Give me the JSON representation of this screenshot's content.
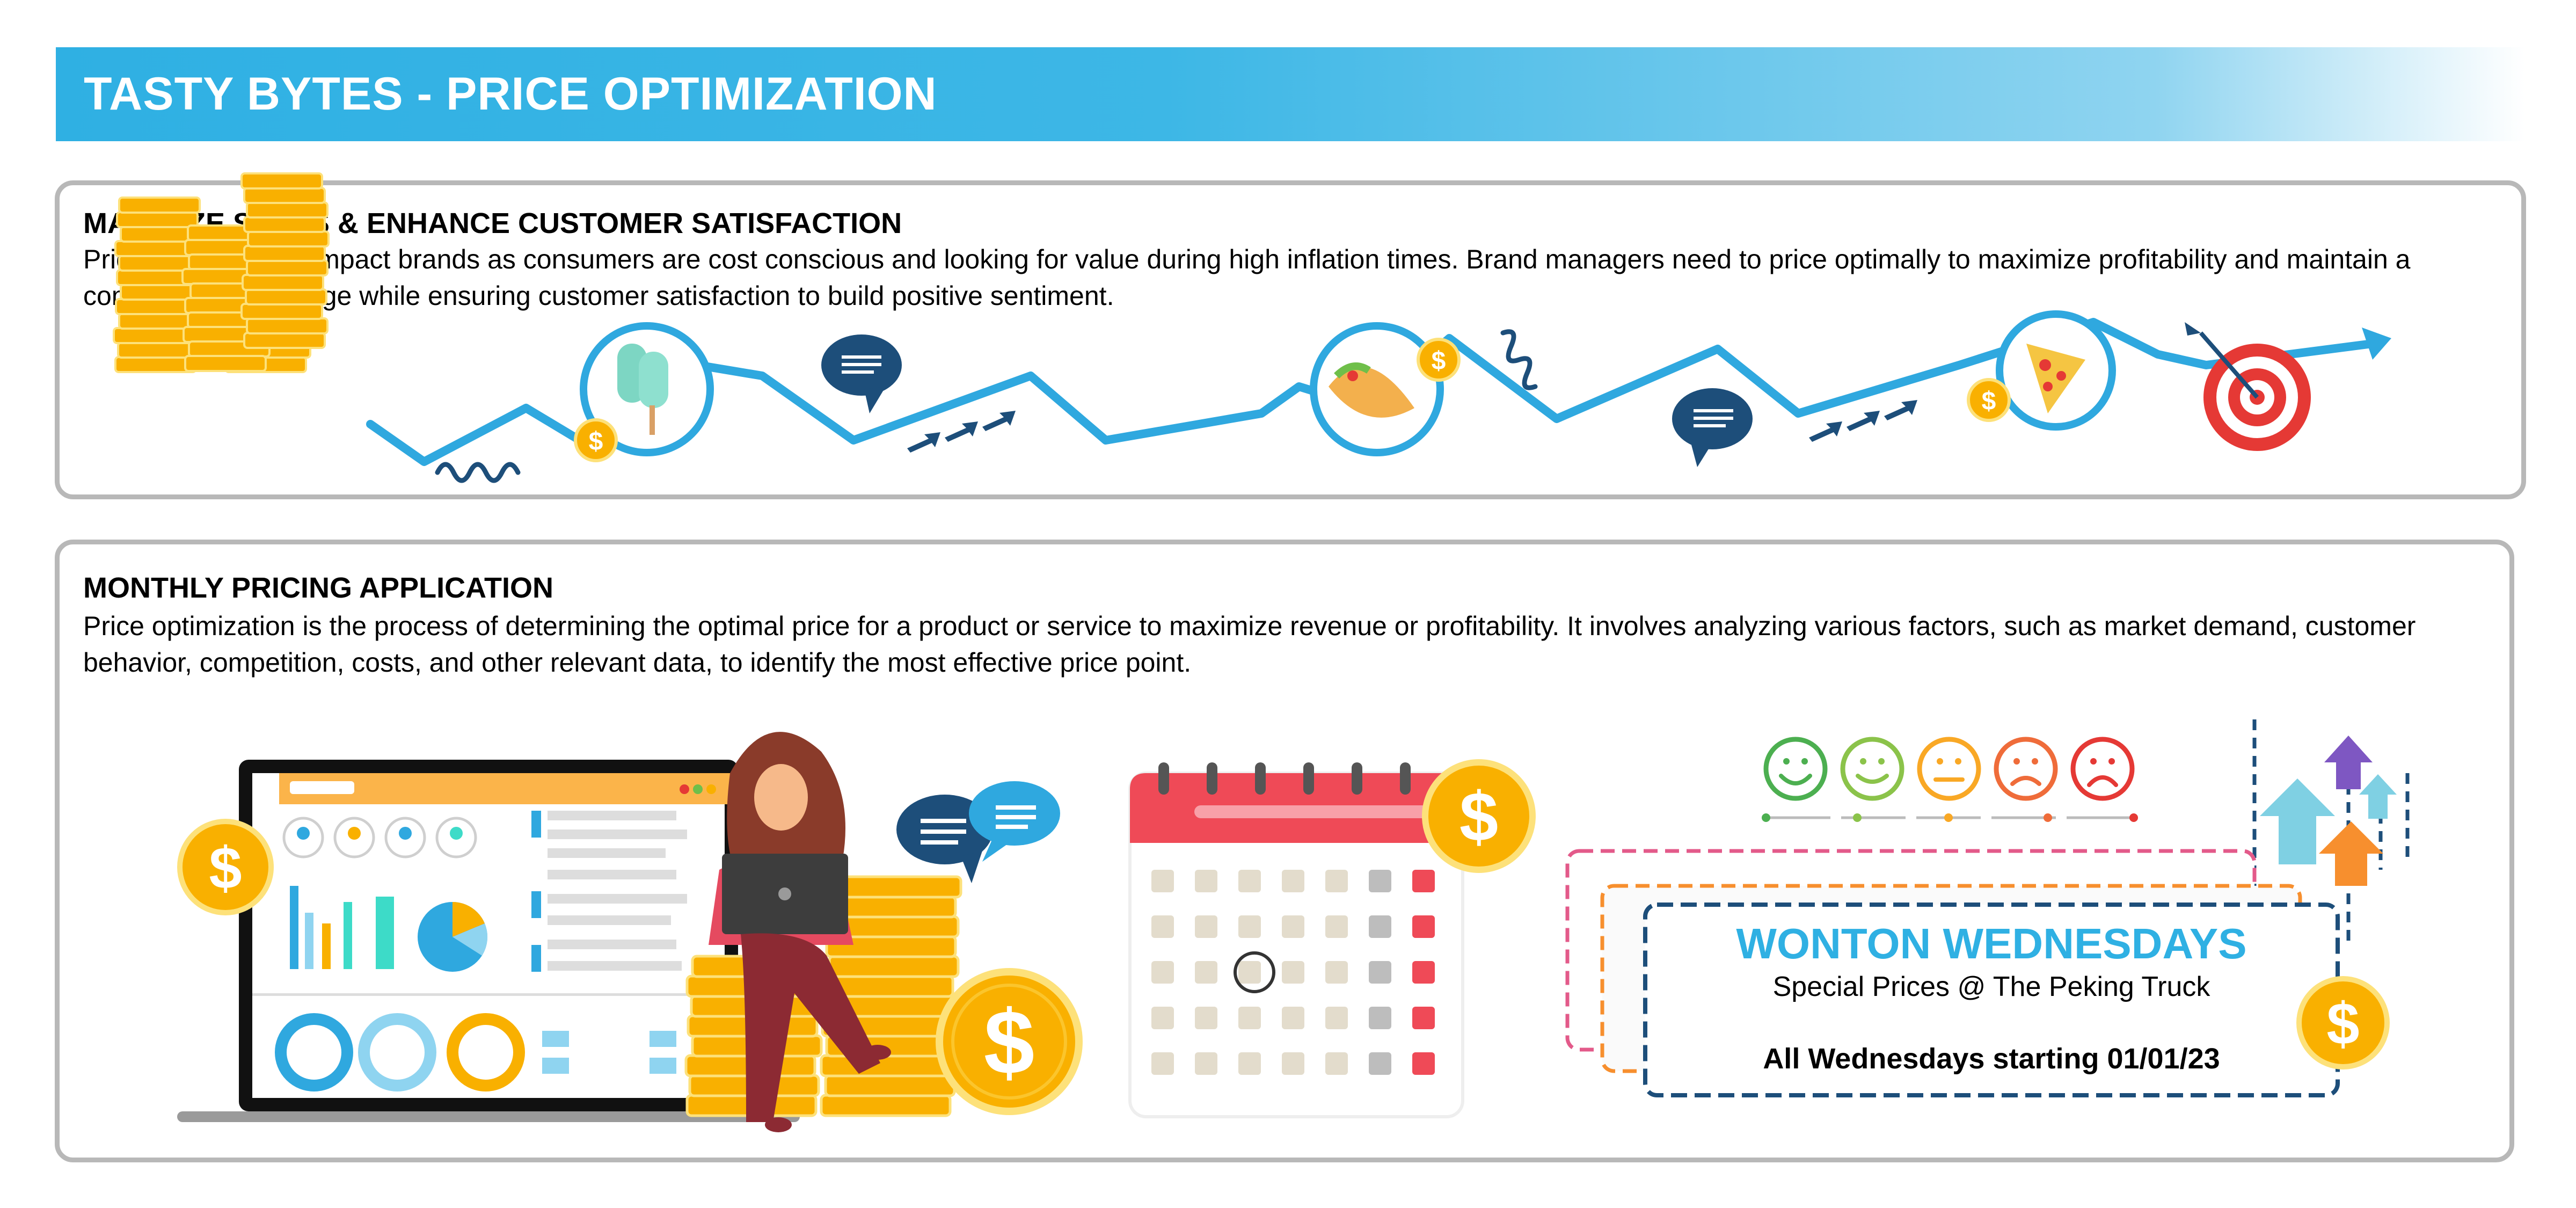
{
  "header": {
    "title": "TASTY BYTES - PRICE OPTIMIZATION"
  },
  "section1": {
    "heading": "MAXIMIZE SALES & ENHANCE CUSTOMER SATISFACTION",
    "body": "Prices significantly impact  brands as consumers are cost conscious and looking for value during high inflation times. Brand managers need to price optimally to maximize profitability and maintain a competitive advantage while ensuring customer satisfaction to build positive sentiment."
  },
  "section2": {
    "heading": "MONTHLY PRICING APPLICATION",
    "body": "Price optimization is the process of determining the optimal price for a product or service to maximize revenue or profitability. It involves analyzing various factors, such as market demand, customer behavior, competition, costs, and other relevant data, to identify the most effective price point."
  },
  "promo": {
    "title": "WONTON WEDNESDAYS",
    "subtitle": "Special Prices @ The Peking Truck",
    "schedule": "All Wednesdays starting 01/01/23"
  },
  "colors": {
    "brand_blue": "#2fb0e3",
    "navy": "#1d4e7a",
    "gold": "#f9b000",
    "red": "#e53935"
  }
}
